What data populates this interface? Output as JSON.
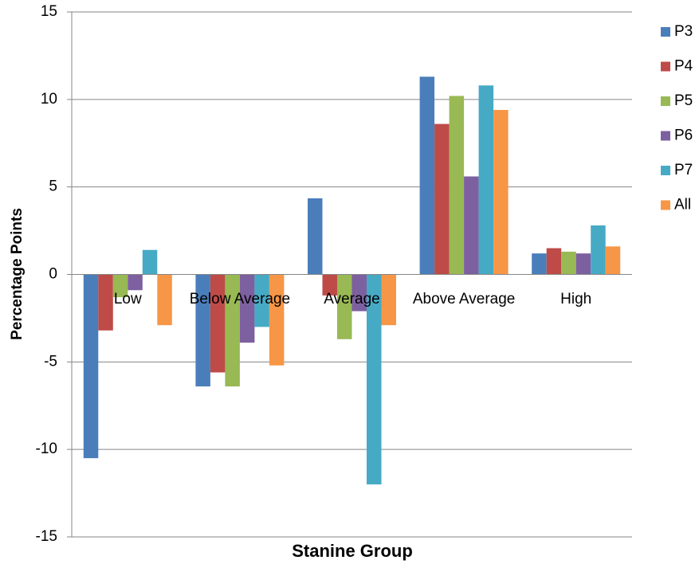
{
  "chart_data": {
    "type": "bar",
    "x_label": "Stanine Group",
    "y_label": "Percentage Points",
    "categories": [
      "Low",
      "Below Average",
      "Average",
      "Above Average",
      "High"
    ],
    "series": [
      {
        "name": "P3",
        "color": "#4a7ebb",
        "values": [
          -10.5,
          -6.4,
          4.35,
          11.3,
          1.2
        ]
      },
      {
        "name": "P4",
        "color": "#be4b48",
        "values": [
          -3.2,
          -5.6,
          -1.2,
          8.6,
          1.5
        ]
      },
      {
        "name": "P5",
        "color": "#98b954",
        "values": [
          -1.3,
          -6.4,
          -3.7,
          10.2,
          1.3
        ]
      },
      {
        "name": "P6",
        "color": "#7d60a0",
        "values": [
          -0.9,
          -3.9,
          -2.1,
          5.6,
          1.2
        ]
      },
      {
        "name": "P7",
        "color": "#46aac5",
        "values": [
          1.4,
          -3.0,
          -12.0,
          10.8,
          2.8
        ]
      },
      {
        "name": "All",
        "color": "#f79646",
        "values": [
          -2.9,
          -5.2,
          -2.9,
          9.4,
          1.6
        ]
      }
    ],
    "ylim": [
      -15,
      15
    ],
    "yticks": [
      -15,
      -10,
      -5,
      0,
      5,
      10,
      15
    ],
    "grid": true,
    "legend": "right"
  }
}
